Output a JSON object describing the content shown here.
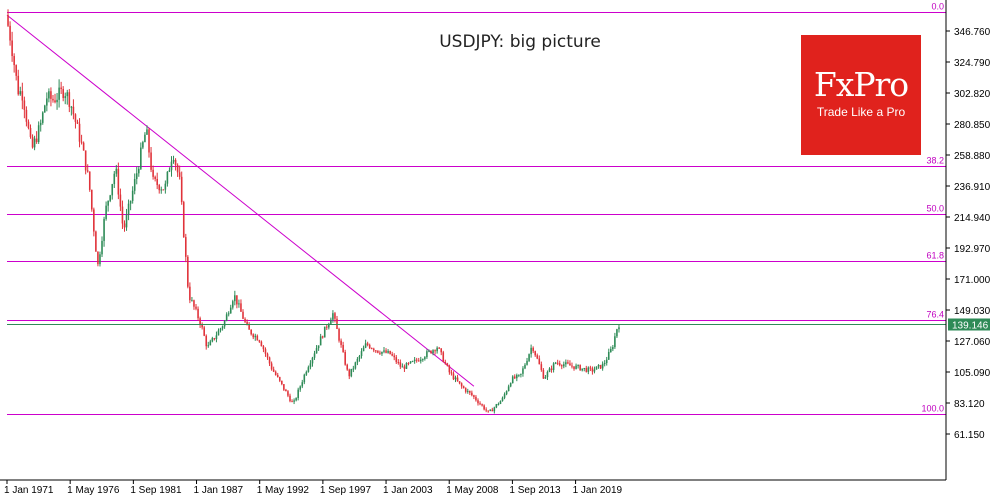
{
  "chart_data": {
    "type": "candlestick",
    "title": "USDJPY: big picture",
    "y_ticks": [
      "346.760",
      "324.790",
      "302.820",
      "280.850",
      "258.880",
      "236.910",
      "214.940",
      "192.970",
      "171.000",
      "149.030",
      "127.060",
      "105.090",
      "83.120",
      "61.150"
    ],
    "x_ticks": [
      "1 Jan 1971",
      "1 May 1976",
      "1 Sep 1981",
      "1 Jan 1987",
      "1 May 1992",
      "1 Sep 1997",
      "1 Jan 2003",
      "1 May 2008",
      "1 Sep 2013",
      "1 Jan 2019"
    ],
    "current_price": "139.146",
    "ylim": [
      45,
      363
    ],
    "close_series": [
      {
        "x": "1971-01",
        "y": 358
      },
      {
        "x": "1971-06",
        "y": 340
      },
      {
        "x": "1972-01",
        "y": 305
      },
      {
        "x": "1972-06",
        "y": 302
      },
      {
        "x": "1973-03",
        "y": 262
      },
      {
        "x": "1973-12",
        "y": 280
      },
      {
        "x": "1974-06",
        "y": 300
      },
      {
        "x": "1975-01",
        "y": 298
      },
      {
        "x": "1975-12",
        "y": 305
      },
      {
        "x": "1976-06",
        "y": 297
      },
      {
        "x": "1977-06",
        "y": 265
      },
      {
        "x": "1978-01",
        "y": 240
      },
      {
        "x": "1978-10",
        "y": 180
      },
      {
        "x": "1979-06",
        "y": 220
      },
      {
        "x": "1980-04",
        "y": 250
      },
      {
        "x": "1980-12",
        "y": 205
      },
      {
        "x": "1981-09",
        "y": 232
      },
      {
        "x": "1982-11",
        "y": 277
      },
      {
        "x": "1983-06",
        "y": 240
      },
      {
        "x": "1984-06",
        "y": 235
      },
      {
        "x": "1985-02",
        "y": 262
      },
      {
        "x": "1985-09",
        "y": 240
      },
      {
        "x": "1986-06",
        "y": 160
      },
      {
        "x": "1987-06",
        "y": 140
      },
      {
        "x": "1988-01",
        "y": 122
      },
      {
        "x": "1989-06",
        "y": 140
      },
      {
        "x": "1990-04",
        "y": 160
      },
      {
        "x": "1991-06",
        "y": 135
      },
      {
        "x": "1992-06",
        "y": 128
      },
      {
        "x": "1993-06",
        "y": 108
      },
      {
        "x": "1995-04",
        "y": 82
      },
      {
        "x": "1996-06",
        "y": 108
      },
      {
        "x": "1998-08",
        "y": 147
      },
      {
        "x": "1999-12",
        "y": 102
      },
      {
        "x": "2001-06",
        "y": 125
      },
      {
        "x": "2002-06",
        "y": 120
      },
      {
        "x": "2003-06",
        "y": 118
      },
      {
        "x": "2004-06",
        "y": 108
      },
      {
        "x": "2005-06",
        "y": 112
      },
      {
        "x": "2007-06",
        "y": 123
      },
      {
        "x": "2008-06",
        "y": 105
      },
      {
        "x": "2009-06",
        "y": 95
      },
      {
        "x": "2010-06",
        "y": 88
      },
      {
        "x": "2011-10",
        "y": 76
      },
      {
        "x": "2012-12",
        "y": 86
      },
      {
        "x": "2013-09",
        "y": 100
      },
      {
        "x": "2014-06",
        "y": 102
      },
      {
        "x": "2015-06",
        "y": 124
      },
      {
        "x": "2016-06",
        "y": 101
      },
      {
        "x": "2017-06",
        "y": 112
      },
      {
        "x": "2018-06",
        "y": 110
      },
      {
        "x": "2019-06",
        "y": 108
      },
      {
        "x": "2020-06",
        "y": 106
      },
      {
        "x": "2021-06",
        "y": 110
      },
      {
        "x": "2022-03",
        "y": 122
      },
      {
        "x": "2022-09",
        "y": 139.146
      }
    ],
    "fibonacci_levels": [
      {
        "label": "0.0",
        "price": 360
      },
      {
        "label": "38.2",
        "price": 251
      },
      {
        "label": "50.0",
        "price": 217
      },
      {
        "label": "61.8",
        "price": 184
      },
      {
        "label": "76.4",
        "price": 142
      },
      {
        "label": "100.0",
        "price": 75.5
      }
    ],
    "trendline": {
      "from": {
        "x": "1971-01",
        "y": 358
      },
      "to": {
        "x": "2010-06",
        "y": 95
      }
    },
    "colors": {
      "up": "#2e8b57",
      "down": "#e0333a",
      "fib": "#cc00cc",
      "price_line": "#2e8b57",
      "badge": "#2e8b57"
    }
  },
  "logo": {
    "brand": "FxPro",
    "tagline": "Trade Like a Pro",
    "color": "#e0221d"
  }
}
